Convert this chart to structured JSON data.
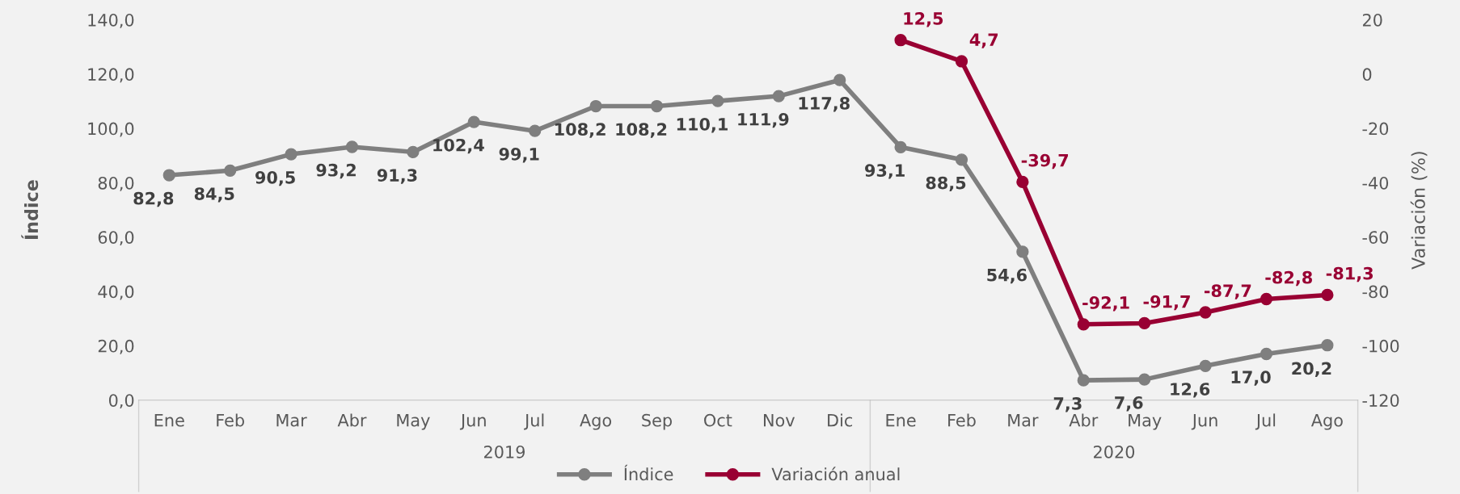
{
  "chart_data": {
    "type": "line",
    "categories": [
      "Ene",
      "Feb",
      "Mar",
      "Abr",
      "May",
      "Jun",
      "Jul",
      "Ago",
      "Sep",
      "Oct",
      "Nov",
      "Dic",
      "Ene",
      "Feb",
      "Mar",
      "Abr",
      "May",
      "Jun",
      "Jul",
      "Ago"
    ],
    "series": [
      {
        "name": "Índice",
        "color": "#7f7f7f",
        "values": [
          82.8,
          84.5,
          90.5,
          93.2,
          91.3,
          102.4,
          99.1,
          108.2,
          108.2,
          110.1,
          111.9,
          117.8,
          93.1,
          88.5,
          54.6,
          7.3,
          7.6,
          12.6,
          17.0,
          20.2
        ],
        "value_labels": [
          "82,8",
          "84,5",
          "90,5",
          "93,2",
          "91,3",
          "102,4",
          "99,1",
          "108,2",
          "108,2",
          "110,1",
          "111,9",
          "117,8",
          "93,1",
          "88,5",
          "54,6",
          "7,3",
          "7,6",
          "12,6",
          "17,0",
          "20,2"
        ]
      },
      {
        "name": "Variación anual",
        "color": "#990033",
        "axis": "y2",
        "values": [
          null,
          null,
          null,
          null,
          null,
          null,
          null,
          null,
          null,
          null,
          null,
          null,
          12.5,
          4.7,
          -39.7,
          -92.1,
          -91.7,
          -87.7,
          -82.8,
          -81.3
        ],
        "value_labels": [
          null,
          null,
          null,
          null,
          null,
          null,
          null,
          null,
          null,
          null,
          null,
          null,
          "12,5",
          "4,7",
          "-39,7",
          "-92,1",
          "-91,7",
          "-87,7",
          "-82,8",
          "-81,3"
        ]
      }
    ],
    "ylabel": "Índice",
    "y2label": "Variación (%)",
    "ylim": [
      0,
      140
    ],
    "yticks": [
      {
        "value": 0,
        "label": "0,0"
      },
      {
        "value": 20,
        "label": "20,0"
      },
      {
        "value": 40,
        "label": "40,0"
      },
      {
        "value": 60,
        "label": "60,0"
      },
      {
        "value": 80,
        "label": "80,0"
      },
      {
        "value": 100,
        "label": "100,0"
      },
      {
        "value": 120,
        "label": "120,0"
      },
      {
        "value": 140,
        "label": "140,0"
      }
    ],
    "y2lim": [
      -120,
      20
    ],
    "y2ticks": [
      -120,
      -100,
      -80,
      -60,
      -40,
      -20,
      0,
      20
    ],
    "annotations": [
      "2019",
      "2020"
    ],
    "marker": "circle",
    "line_style": "solid",
    "legend": "bottom",
    "grid": false
  }
}
